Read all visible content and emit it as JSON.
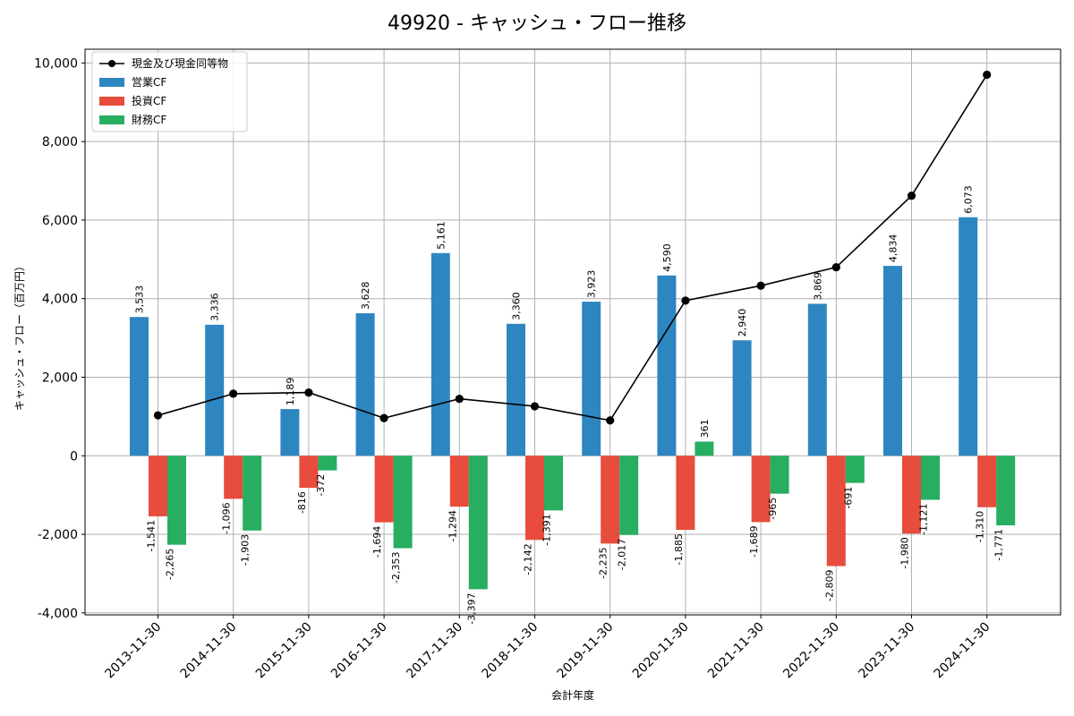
{
  "chart_data": {
    "type": "bar",
    "title": "49920 - キャッシュ・フロー推移",
    "xlabel": "会計年度",
    "ylabel": "キャッシュ・フロー（百万円）",
    "categories": [
      "2013-11-30",
      "2014-11-30",
      "2015-11-30",
      "2016-11-30",
      "2017-11-30",
      "2018-11-30",
      "2019-11-30",
      "2020-11-30",
      "2021-11-30",
      "2022-11-30",
      "2023-11-30",
      "2024-11-30"
    ],
    "ylim": [
      -4050,
      10350
    ],
    "yticks": [
      -4000,
      -2000,
      0,
      2000,
      4000,
      6000,
      8000,
      10000
    ],
    "ytick_labels": [
      "-4,000",
      "-2,000",
      "0",
      "2,000",
      "4,000",
      "6,000",
      "8,000",
      "10,000"
    ],
    "grid": true,
    "legend_position": "top-left",
    "series": [
      {
        "name": "営業CF",
        "kind": "bar",
        "color": "#2e86c1",
        "values": [
          3533,
          3336,
          1189,
          3628,
          5161,
          3360,
          3923,
          4590,
          2940,
          3869,
          4834,
          6073
        ],
        "labels": [
          "3,533",
          "3,336",
          "1,189",
          "3,628",
          "5,161",
          "3,360",
          "3,923",
          "4,590",
          "2,940",
          "3,869",
          "4,834",
          "6,073"
        ]
      },
      {
        "name": "投資CF",
        "kind": "bar",
        "color": "#e74c3c",
        "values": [
          -1541,
          -1096,
          -816,
          -1694,
          -1294,
          -2142,
          -2235,
          -1885,
          -1689,
          -2809,
          -1980,
          -1310
        ],
        "labels": [
          "-1,541",
          "-1,096",
          "-816",
          "-1,694",
          "-1,294",
          "-2,142",
          "-2,235",
          "-1,885",
          "-1,689",
          "-2,809",
          "-1,980",
          "-1,310"
        ]
      },
      {
        "name": "財務CF",
        "kind": "bar",
        "color": "#27ae60",
        "values": [
          -2265,
          -1903,
          -372,
          -2353,
          -3397,
          -1391,
          -2017,
          361,
          -965,
          -691,
          -1121,
          -1771
        ],
        "labels": [
          "-2,265",
          "-1,903",
          "-372",
          "-2,353",
          "-3,397",
          "-1,391",
          "-2,017",
          "361",
          "-965",
          "-691",
          "-1,121",
          "-1,771"
        ]
      },
      {
        "name": "現金及び現金同等物",
        "kind": "line",
        "color": "#000000",
        "values": [
          1030,
          1580,
          1610,
          960,
          1450,
          1260,
          900,
          3950,
          4330,
          4800,
          6620,
          9700
        ]
      }
    ]
  }
}
